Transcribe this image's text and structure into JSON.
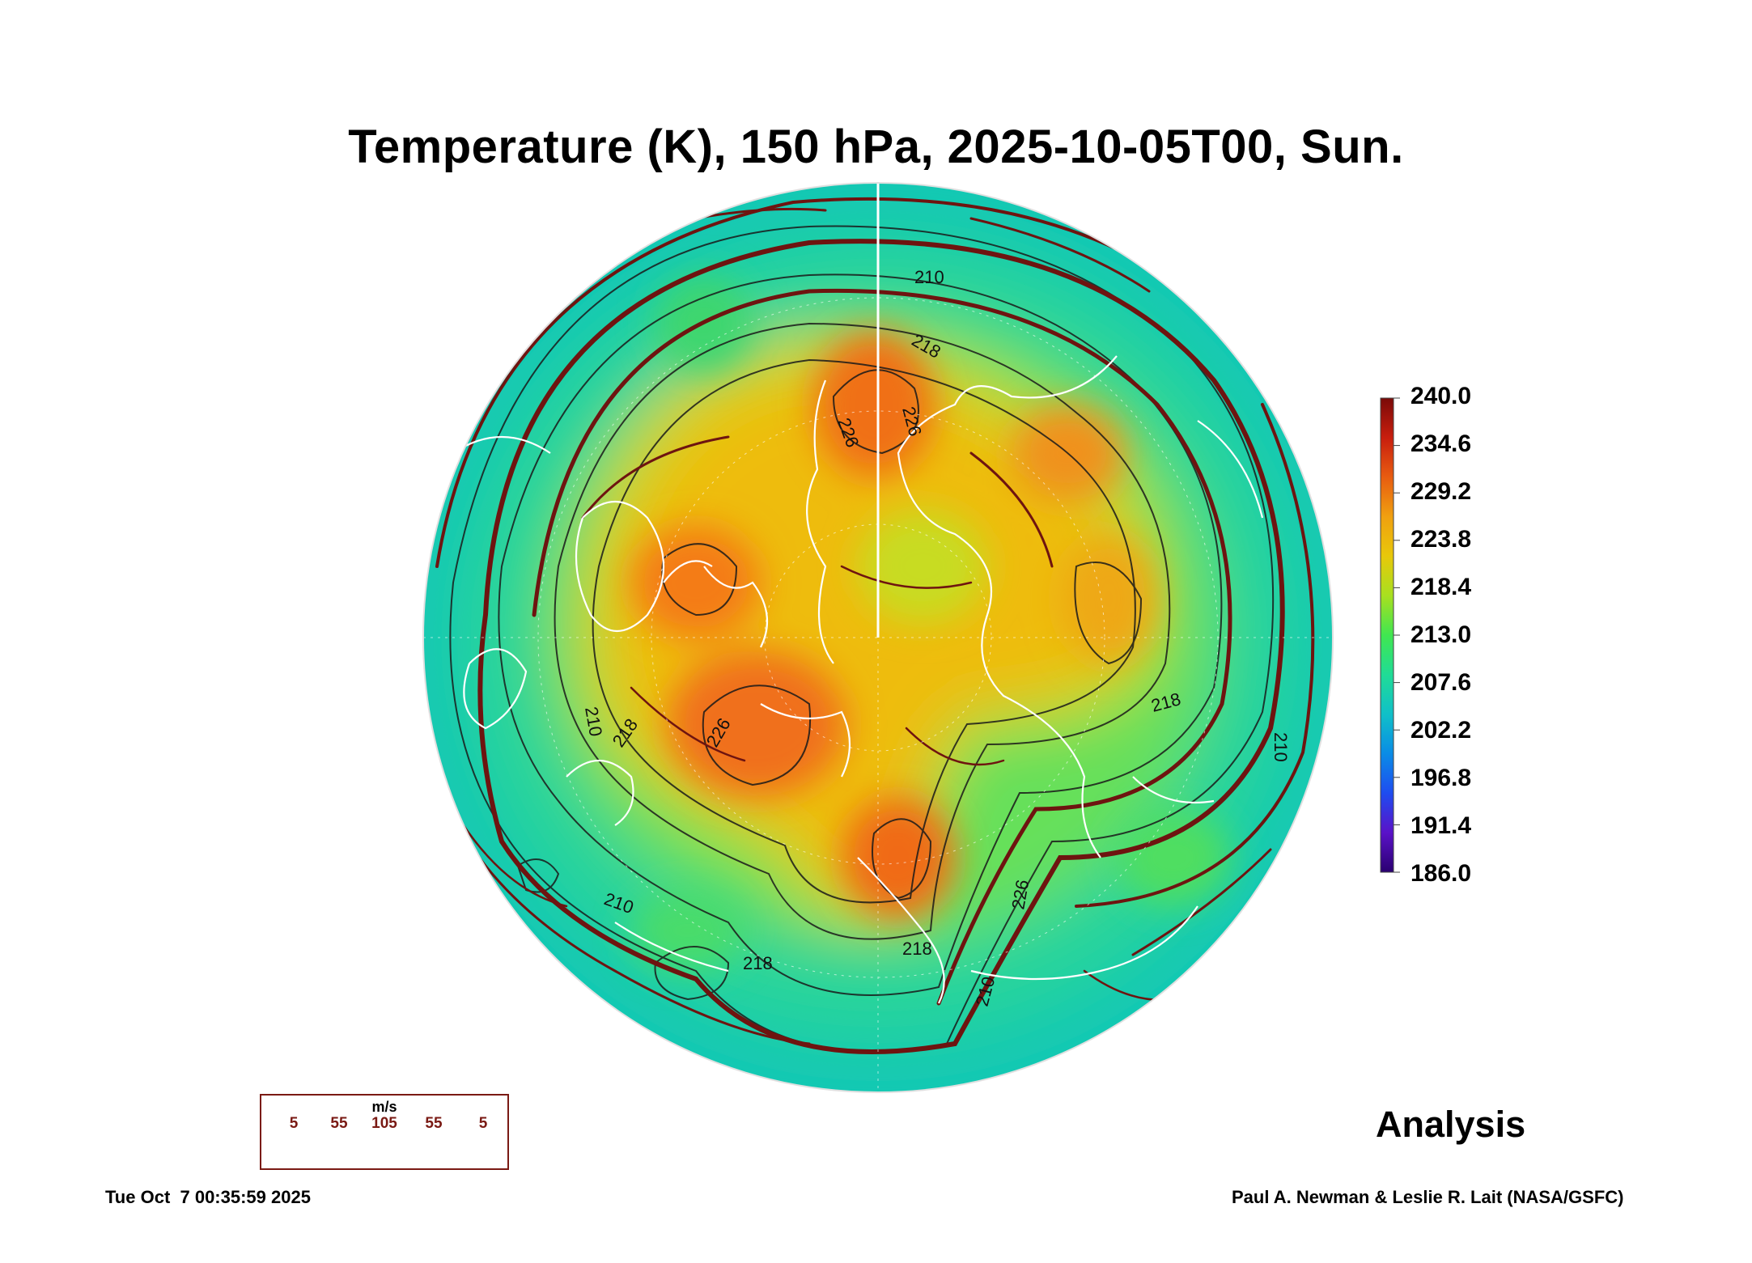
{
  "title": "Temperature (K), 150 hPa, 2025-10-05T00, Sun.",
  "colorbar": {
    "unit": "K",
    "ticks": [
      "240.0",
      "234.6",
      "229.2",
      "223.8",
      "218.4",
      "213.0",
      "207.6",
      "202.2",
      "196.8",
      "191.4",
      "186.0"
    ],
    "min": 186.0,
    "max": 240.0,
    "colors": [
      "#2a0070",
      "#5a12c8",
      "#1e4cf0",
      "#0a8ce6",
      "#10c0c8",
      "#20dc96",
      "#40e650",
      "#a8e020",
      "#e8c80a",
      "#f0a010",
      "#e85c10",
      "#c81e0e",
      "#7a0a08"
    ]
  },
  "contour_labels": [
    "210",
    "218",
    "226",
    "226",
    "226",
    "218",
    "210",
    "218",
    "226",
    "210",
    "218",
    "218",
    "210",
    "210"
  ],
  "wind_legend": {
    "unit": "m/s",
    "speeds": [
      "5",
      "55",
      "105",
      "55",
      "5"
    ]
  },
  "analysis_label": "Analysis",
  "timestamp": "Tue Oct  7 00:35:59 2025",
  "credit": "Paul A. Newman & Leslie R. Lait (NASA/GSFC)",
  "chart_data": {
    "type": "heatmap",
    "projection": "north-polar-stereographic",
    "variable": "Temperature",
    "unit": "K",
    "level_hPa": 150,
    "valid_time": "2025-10-05T00",
    "color_range": [
      186.0,
      240.0
    ],
    "contour_levels": [
      210,
      218,
      226
    ],
    "overlay": "wind streamlines (m/s)",
    "legend_position": "right"
  }
}
